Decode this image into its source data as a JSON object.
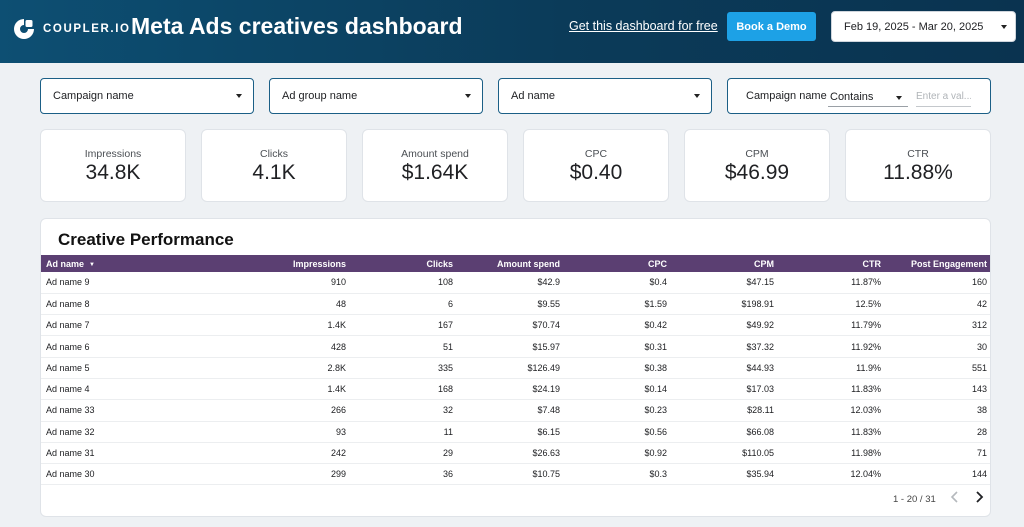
{
  "brand": {
    "name": "COUPLER.IO"
  },
  "header": {
    "title": "Meta Ads creatives dashboard",
    "link_text": "Get this dashboard for free",
    "demo_button": "Book a Demo",
    "date_range": "Feb 19, 2025 - Mar 20, 2025"
  },
  "filters": {
    "campaign": "Campaign name",
    "ad_group": "Ad group name",
    "ad_name": "Ad name",
    "text_filter": {
      "label": "Campaign name",
      "operator": "Contains",
      "placeholder": "Enter a val..."
    }
  },
  "kpis": [
    {
      "label": "Impressions",
      "value": "34.8K"
    },
    {
      "label": "Clicks",
      "value": "4.1K"
    },
    {
      "label": "Amount spend",
      "value": "$1.64K"
    },
    {
      "label": "CPC",
      "value": "$0.40"
    },
    {
      "label": "CPM",
      "value": "$46.99"
    },
    {
      "label": "CTR",
      "value": "11.88%"
    }
  ],
  "table": {
    "title": "Creative Performance",
    "columns": [
      "Ad name",
      "Impressions",
      "Clicks",
      "Amount spend",
      "CPC",
      "CPM",
      "CTR",
      "Post Engagement"
    ],
    "rows": [
      [
        "Ad name 9",
        "910",
        "108",
        "$42.9",
        "$0.4",
        "$47.15",
        "11.87%",
        "160"
      ],
      [
        "Ad name 8",
        "48",
        "6",
        "$9.55",
        "$1.59",
        "$198.91",
        "12.5%",
        "42"
      ],
      [
        "Ad name 7",
        "1.4K",
        "167",
        "$70.74",
        "$0.42",
        "$49.92",
        "11.79%",
        "312"
      ],
      [
        "Ad name 6",
        "428",
        "51",
        "$15.97",
        "$0.31",
        "$37.32",
        "11.92%",
        "30"
      ],
      [
        "Ad name 5",
        "2.8K",
        "335",
        "$126.49",
        "$0.38",
        "$44.93",
        "11.9%",
        "551"
      ],
      [
        "Ad name 4",
        "1.4K",
        "168",
        "$24.19",
        "$0.14",
        "$17.03",
        "11.83%",
        "143"
      ],
      [
        "Ad name 33",
        "266",
        "32",
        "$7.48",
        "$0.23",
        "$28.11",
        "12.03%",
        "38"
      ],
      [
        "Ad name 32",
        "93",
        "11",
        "$6.15",
        "$0.56",
        "$66.08",
        "11.83%",
        "28"
      ],
      [
        "Ad name 31",
        "242",
        "29",
        "$26.63",
        "$0.92",
        "$110.05",
        "11.98%",
        "71"
      ],
      [
        "Ad name 30",
        "299",
        "36",
        "$10.75",
        "$0.3",
        "$35.94",
        "12.04%",
        "144"
      ]
    ],
    "pagination": "1 - 20 / 31"
  },
  "icons": {
    "logo": "coupler-logo-icon",
    "dropdown": "chevron-down-icon",
    "sort": "sort-down-icon",
    "prev": "chevron-left-icon",
    "next": "chevron-right-icon"
  },
  "colors": {
    "header_bg": "#0b3b59",
    "accent_button": "#1da1e6",
    "table_header": "#5b3f72",
    "filter_border": "#1b5f86"
  }
}
